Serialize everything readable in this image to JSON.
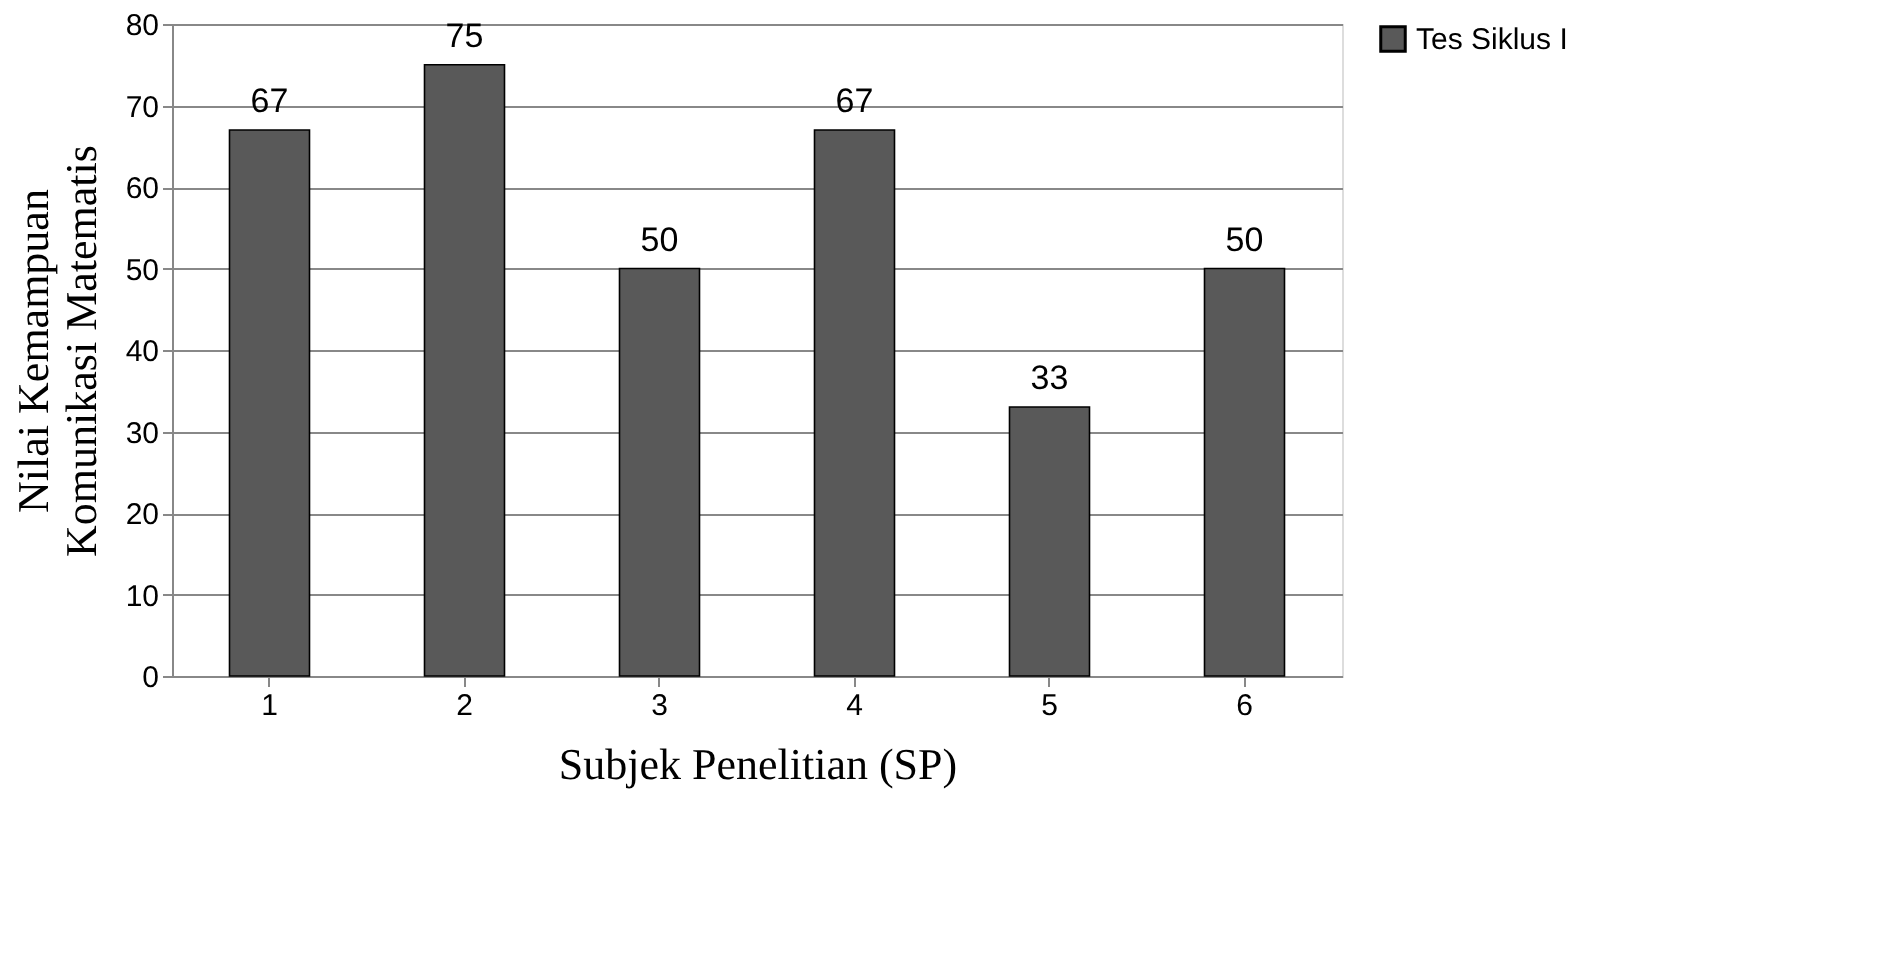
{
  "chart_data": {
    "type": "bar",
    "xlabel": "Subjek Penelitian (SP)",
    "ylabel": "Nilai Kemampuan Komunikasi Matematis",
    "categories": [
      "1",
      "2",
      "3",
      "4",
      "5",
      "6"
    ],
    "series": [
      {
        "name": "Tes Siklus I",
        "color": "#595959",
        "values": [
          67,
          75,
          50,
          67,
          33,
          50
        ]
      }
    ],
    "ylim": [
      0,
      80
    ],
    "yticks": [
      0,
      10,
      20,
      30,
      40,
      50,
      60,
      70,
      80
    ],
    "grid": "y",
    "legend": "right",
    "data_labels": true
  }
}
